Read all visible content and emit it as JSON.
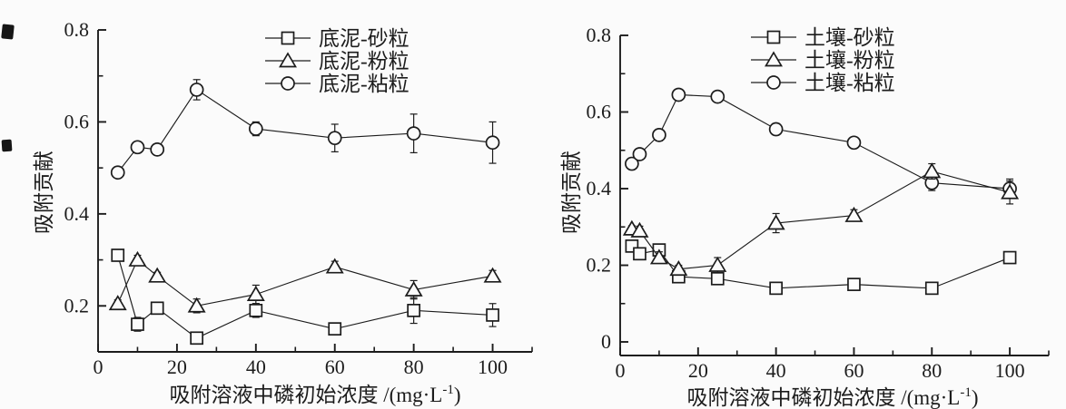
{
  "page": {
    "background": "#fbfbfb",
    "ink": "#1c1c1c",
    "marker_fill": "#fbfbfb"
  },
  "chart_data": [
    {
      "type": "line",
      "panel": "left",
      "title": "",
      "ylabel": "吸附贡献",
      "xlabel_main": "吸附溶液中磷初始浓度 /(mg·L",
      "xlabel_sup": "-1",
      "xlabel_close": ")",
      "legend_position": "top-center-inside",
      "grid": false,
      "x_axis": {
        "range": [
          0,
          110
        ],
        "major_ticks": [
          0,
          20,
          40,
          60,
          80,
          100
        ],
        "tick_labels": [
          "0",
          "20",
          "40",
          "60",
          "80",
          "100"
        ],
        "minor_ticks": [
          10,
          30,
          50,
          70,
          90,
          110
        ]
      },
      "y_axis": {
        "range": [
          0.1,
          0.8
        ],
        "major_ticks": [
          0.2,
          0.4,
          0.6,
          0.8
        ],
        "tick_labels": [
          "0.2",
          "0.4",
          "0.6",
          "0.8"
        ],
        "minor_ticks": [
          0.3,
          0.5,
          0.7
        ]
      },
      "x": [
        5,
        10,
        15,
        25,
        40,
        60,
        80,
        100
      ],
      "series": [
        {
          "name": "底泥-砂粒",
          "marker": "square",
          "values": [
            0.31,
            0.16,
            0.195,
            0.13,
            0.19,
            0.15,
            0.19,
            0.18
          ],
          "errors": [
            0.005,
            0.015,
            0.012,
            0.008,
            0.015,
            0.012,
            0.028,
            0.025
          ]
        },
        {
          "name": "底泥-粉粒",
          "marker": "triangle",
          "values": [
            0.205,
            0.3,
            0.265,
            0.2,
            0.225,
            0.285,
            0.235,
            0.265
          ],
          "errors": [
            0.008,
            0.01,
            0.008,
            0.015,
            0.02,
            0.012,
            0.02,
            0.012
          ]
        },
        {
          "name": "底泥-粘粒",
          "marker": "circle",
          "values": [
            0.49,
            0.545,
            0.54,
            0.67,
            0.585,
            0.565,
            0.575,
            0.555
          ],
          "errors": [
            0.008,
            0.012,
            0.012,
            0.022,
            0.015,
            0.03,
            0.042,
            0.045
          ]
        }
      ]
    },
    {
      "type": "line",
      "panel": "right",
      "title": "",
      "ylabel": "吸附贡献",
      "xlabel_main": "吸附溶液中磷初始浓度 /(mg·L",
      "xlabel_sup": "-1",
      "xlabel_close": ")",
      "legend_position": "top-center-inside",
      "grid": false,
      "x_axis": {
        "range": [
          0,
          110
        ],
        "major_ticks": [
          0,
          20,
          40,
          60,
          80,
          100
        ],
        "tick_labels": [
          "0",
          "20",
          "40",
          "60",
          "80",
          "100"
        ],
        "minor_ticks": [
          10,
          30,
          50,
          70,
          90,
          110
        ]
      },
      "y_axis": {
        "range": [
          0,
          0.8
        ],
        "major_ticks": [
          0,
          0.2,
          0.4,
          0.6,
          0.8
        ],
        "tick_labels": [
          "0",
          "0.2",
          "0.4",
          "0.6",
          "0.8"
        ],
        "minor_ticks": [
          0.1,
          0.3,
          0.5,
          0.7
        ]
      },
      "x": [
        3,
        5,
        10,
        15,
        25,
        40,
        60,
        80,
        100
      ],
      "series": [
        {
          "name": "土壤-砂粒",
          "marker": "square",
          "values": [
            0.25,
            0.23,
            0.24,
            0.17,
            0.165,
            0.14,
            0.15,
            0.14,
            0.22
          ],
          "errors": [
            0.01,
            0.015,
            0.01,
            0.012,
            0.012,
            0.01,
            0.008,
            0.012,
            0.015
          ]
        },
        {
          "name": "土壤-粉粒",
          "marker": "triangle",
          "values": [
            0.295,
            0.29,
            0.22,
            0.19,
            0.2,
            0.31,
            0.33,
            0.445,
            0.39
          ],
          "errors": [
            0.008,
            0.012,
            0.015,
            0.01,
            0.02,
            0.025,
            0.015,
            0.02,
            0.03
          ]
        },
        {
          "name": "土壤-粘粒",
          "marker": "circle",
          "values": [
            0.465,
            0.49,
            0.54,
            0.645,
            0.64,
            0.555,
            0.52,
            0.415,
            0.4
          ],
          "errors": [
            0.015,
            0.012,
            0.015,
            0.01,
            0.01,
            0.015,
            0.008,
            0.02,
            0.025
          ]
        }
      ]
    }
  ]
}
